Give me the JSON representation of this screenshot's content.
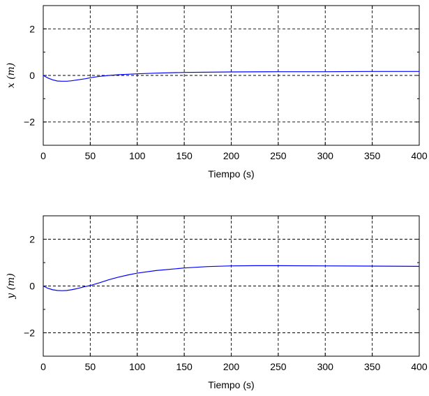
{
  "chart_data": [
    {
      "type": "line",
      "xlabel": "Tiempo (s)",
      "ylabel": "x (m)",
      "xlim": [
        0,
        400
      ],
      "ylim": [
        -3,
        3
      ],
      "xticks": [
        0,
        50,
        100,
        150,
        200,
        250,
        300,
        350,
        400
      ],
      "yticks": [
        -2,
        0,
        2
      ],
      "yminor": [
        -3,
        -1,
        1,
        3
      ],
      "grid": true,
      "color": "#0000ff",
      "series": [
        {
          "x": [
            0,
            5,
            10,
            15,
            20,
            25,
            30,
            35,
            40,
            45,
            50,
            55,
            60,
            70,
            80,
            90,
            100,
            120,
            150,
            200,
            250,
            300,
            350,
            400
          ],
          "values": [
            0,
            -0.11,
            -0.19,
            -0.24,
            -0.25,
            -0.25,
            -0.23,
            -0.2,
            -0.17,
            -0.14,
            -0.1,
            -0.07,
            -0.04,
            0,
            0.03,
            0.05,
            0.07,
            0.1,
            0.13,
            0.15,
            0.16,
            0.16,
            0.17,
            0.17
          ]
        }
      ]
    },
    {
      "type": "line",
      "xlabel": "Tiempo (s)",
      "ylabel": "y (m)",
      "xlim": [
        0,
        400
      ],
      "ylim": [
        -3,
        3
      ],
      "xticks": [
        0,
        50,
        100,
        150,
        200,
        250,
        300,
        350,
        400
      ],
      "yticks": [
        -2,
        0,
        2
      ],
      "yminor": [
        -3,
        -1,
        1,
        3
      ],
      "grid": true,
      "color": "#0000ff",
      "series": [
        {
          "x": [
            0,
            5,
            10,
            15,
            20,
            25,
            30,
            35,
            40,
            45,
            50,
            60,
            70,
            80,
            90,
            100,
            120,
            150,
            175,
            200,
            225,
            250,
            300,
            350,
            400
          ],
          "values": [
            0,
            -0.1,
            -0.16,
            -0.19,
            -0.2,
            -0.19,
            -0.16,
            -0.12,
            -0.07,
            -0.02,
            0.02,
            0.14,
            0.27,
            0.38,
            0.47,
            0.55,
            0.66,
            0.77,
            0.83,
            0.86,
            0.87,
            0.87,
            0.86,
            0.85,
            0.84
          ]
        }
      ]
    }
  ]
}
